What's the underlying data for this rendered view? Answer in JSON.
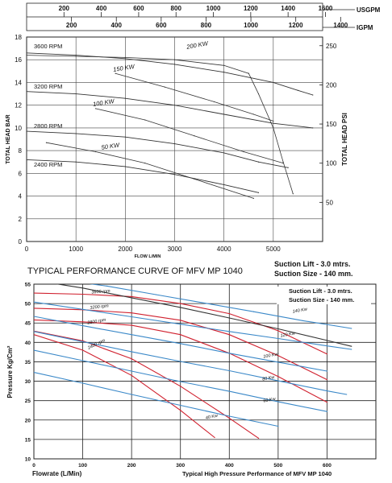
{
  "chart_data": [
    {
      "type": "line",
      "title": "TYPICAL PERFORMANCE CURVE OF MFV MP 1040",
      "xlabel": "FLOW L/MIN",
      "ylabel": "TOTAL HEAD BAR",
      "y2label": "TOTAL HEAD PSI",
      "top_axis_1_label": "USGPM",
      "top_axis_2_label": "IGPM",
      "xlim": [
        0,
        6000
      ],
      "ylim": [
        0,
        18
      ],
      "x_ticks": [
        "0",
        "1000",
        "2000",
        "3000",
        "4000",
        "5000"
      ],
      "y_ticks": [
        "0",
        "2",
        "4",
        "6",
        "8",
        "10",
        "12",
        "14",
        "16",
        "18"
      ],
      "y2_ticks": [
        "50",
        "100",
        "150",
        "200",
        "250"
      ],
      "usgpm_ticks": [
        "200",
        "400",
        "600",
        "800",
        "1000",
        "1200",
        "1400",
        "1600"
      ],
      "igpm_ticks": [
        "200",
        "400",
        "600",
        "800",
        "1000",
        "1200",
        "1400"
      ],
      "grid": true,
      "notes": [
        "Suction Lift - 3.0 mtrs.",
        "Suction Size - 140 mm."
      ],
      "series": [
        {
          "name": "3600 RPM",
          "x": [
            0,
            1000,
            2000,
            3000,
            4000,
            5000,
            5500,
            5800
          ],
          "y": [
            16.6,
            16.4,
            16.1,
            15.6,
            14.9,
            14.0,
            13.3,
            12.9
          ]
        },
        {
          "name": "3200 RPM",
          "x": [
            0,
            1000,
            2000,
            3000,
            4000,
            5000,
            5800
          ],
          "y": [
            13.2,
            13.0,
            12.6,
            12.0,
            11.2,
            10.4,
            10.0
          ]
        },
        {
          "name": "2800 RPM",
          "x": [
            0,
            1000,
            2000,
            3000,
            4000,
            4700,
            5300
          ],
          "y": [
            9.7,
            9.5,
            9.2,
            8.6,
            7.8,
            7.0,
            6.5
          ]
        },
        {
          "name": "2400 RPM",
          "x": [
            0,
            1000,
            2000,
            3000,
            4000,
            4700
          ],
          "y": [
            7.2,
            7.0,
            6.6,
            5.9,
            5.0,
            4.3
          ]
        },
        {
          "name": "200 KW",
          "x": [
            0,
            1000,
            2000,
            3000,
            4000,
            4500,
            4700,
            5000,
            5200,
            5400
          ],
          "y": [
            16.4,
            16.3,
            16.2,
            16.0,
            15.5,
            14.8,
            13.0,
            10.0,
            7.0,
            4.2
          ]
        },
        {
          "name": "150 KW",
          "x": [
            1800,
            2800,
            3800,
            4600,
            5000
          ],
          "y": [
            14.8,
            13.6,
            12.3,
            11.2,
            10.6
          ]
        },
        {
          "name": "100 KW",
          "x": [
            1400,
            2400,
            3400,
            4400,
            5200
          ],
          "y": [
            11.7,
            10.7,
            9.3,
            7.9,
            6.9
          ]
        },
        {
          "name": "50 KW",
          "x": [
            400,
            1400,
            2400,
            3400,
            4600
          ],
          "y": [
            8.7,
            7.9,
            6.9,
            5.5,
            3.8
          ]
        }
      ]
    },
    {
      "type": "line",
      "title": "Typical High Pressure Performance of MFV MP 1040",
      "xlabel": "Flowrate (L/Min)",
      "ylabel": "Pressure Kg/Cm²",
      "xlim": [
        0,
        700
      ],
      "ylim": [
        10,
        55
      ],
      "x_ticks": [
        "0",
        "100",
        "200",
        "300",
        "400",
        "500",
        "600"
      ],
      "y_ticks": [
        "10",
        "15",
        "20",
        "25",
        "30",
        "35",
        "40",
        "45",
        "50",
        "55"
      ],
      "grid": true,
      "notes": [
        "Suction Lift - 3.0 mtrs.",
        "Suction Size - 140 mm."
      ],
      "series": [
        {
          "name": "3600 rpm",
          "color": "#d0202e",
          "x": [
            0,
            100,
            200,
            300,
            400,
            500,
            600
          ],
          "y": [
            52.7,
            52.4,
            51.8,
            50.0,
            47.4,
            43.0,
            37.0
          ]
        },
        {
          "name": "3200 rpm",
          "color": "#d0202e",
          "x": [
            0,
            100,
            200,
            300,
            400,
            500,
            600
          ],
          "y": [
            48.8,
            48.4,
            47.6,
            45.7,
            42.0,
            36.6,
            30.4
          ]
        },
        {
          "name": "2800 rpm",
          "color": "#d0202e",
          "x": [
            0,
            100,
            200,
            300,
            400,
            500,
            600
          ],
          "y": [
            45.8,
            45.3,
            44.4,
            42.0,
            37.2,
            31.2,
            24.6
          ]
        },
        {
          "name": "2400 rpm",
          "color": "#d0202e",
          "x": [
            0,
            100,
            200,
            300,
            400,
            460
          ],
          "y": [
            42.9,
            40.4,
            35.8,
            28.7,
            20.5,
            15.3
          ]
        },
        {
          "name": "",
          "color": "#d0202e",
          "x": [
            0,
            100,
            200,
            300,
            370
          ],
          "y": [
            42.0,
            38.0,
            31.5,
            22.5,
            15.5
          ]
        },
        {
          "name": "",
          "color": "#333333",
          "x": [
            0,
            100,
            200,
            300,
            400,
            500,
            600,
            650
          ],
          "y": [
            56.0,
            54.0,
            51.5,
            49.0,
            46.3,
            43.5,
            40.5,
            39.0
          ]
        },
        {
          "name": "140 Kw",
          "color": "#3a88c8",
          "x": [
            60,
            150,
            250,
            350,
            450,
            550,
            650
          ],
          "y": [
            56.0,
            54.5,
            52.3,
            50.1,
            47.9,
            45.6,
            43.6
          ]
        },
        {
          "name": "120 Kw",
          "color": "#3a88c8",
          "x": [
            0,
            100,
            200,
            300,
            400,
            500,
            600,
            650
          ],
          "y": [
            50.4,
            48.5,
            46.6,
            44.7,
            42.8,
            41.0,
            39.1,
            38.2
          ]
        },
        {
          "name": "100 Kw",
          "color": "#3a88c8",
          "x": [
            0,
            100,
            200,
            300,
            400,
            500,
            600
          ],
          "y": [
            46.7,
            44.3,
            42.0,
            39.7,
            37.2,
            34.9,
            32.6
          ]
        },
        {
          "name": "80 Kw",
          "color": "#3a88c8",
          "x": [
            0,
            100,
            200,
            300,
            400,
            500,
            600,
            640
          ],
          "y": [
            42.8,
            40.2,
            37.6,
            35.1,
            32.7,
            30.1,
            27.5,
            26.6
          ]
        },
        {
          "name": "60 Kw",
          "color": "#3a88c8",
          "x": [
            0,
            100,
            200,
            300,
            400,
            500,
            600
          ],
          "y": [
            38.0,
            35.3,
            32.6,
            29.9,
            27.4,
            24.7,
            22.2
          ]
        },
        {
          "name": "40 Kw",
          "color": "#3a88c8",
          "x": [
            0,
            100,
            200,
            300,
            400,
            500
          ],
          "y": [
            32.3,
            29.5,
            26.6,
            23.8,
            21.0,
            18.4
          ]
        }
      ]
    }
  ]
}
